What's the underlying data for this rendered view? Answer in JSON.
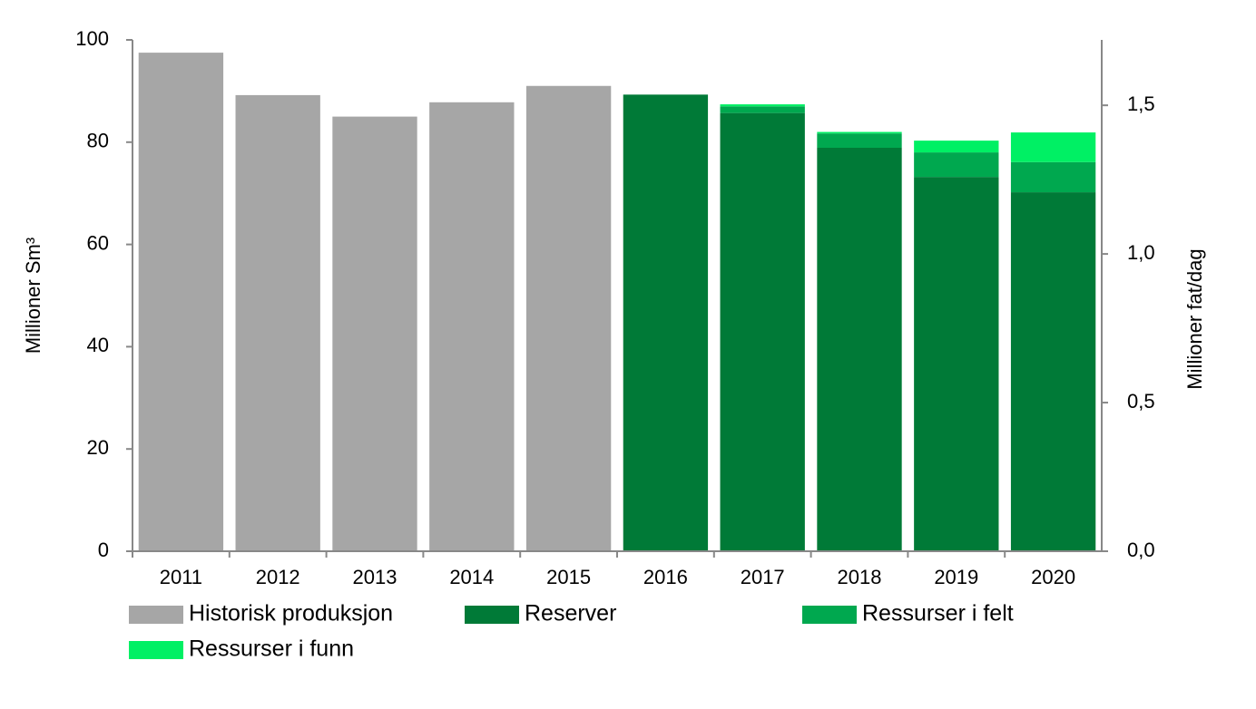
{
  "chart_data": {
    "type": "bar",
    "stacked": true,
    "categories": [
      "2011",
      "2012",
      "2013",
      "2014",
      "2015",
      "2016",
      "2017",
      "2018",
      "2019",
      "2020"
    ],
    "series": [
      {
        "name": "Historisk produksjon",
        "color": "#a6a6a6",
        "values": [
          97.5,
          89.2,
          85,
          87.8,
          91,
          null,
          null,
          null,
          null,
          null
        ]
      },
      {
        "name": "Reserver",
        "color": "#007a37",
        "values": [
          null,
          null,
          null,
          null,
          null,
          89.3,
          85.7,
          78.9,
          73.2,
          70.2
        ]
      },
      {
        "name": "Ressurser i felt",
        "color": "#00a84f",
        "values": [
          null,
          null,
          null,
          null,
          null,
          0,
          1.3,
          2.8,
          4.8,
          5.9
        ]
      },
      {
        "name": "Ressurser i funn",
        "color": "#00f064",
        "values": [
          null,
          null,
          null,
          null,
          null,
          0,
          0.4,
          0.3,
          2.3,
          5.8
        ]
      }
    ],
    "ylabel": "Millioner  Sm³",
    "y2label": "Millioner fat/dag",
    "ylim": [
      0,
      100
    ],
    "yticks": [
      0,
      20,
      40,
      60,
      80,
      100
    ],
    "y2lim": [
      0,
      1.72
    ],
    "y2ticks": [
      {
        "value": 0,
        "label": "0,0"
      },
      {
        "value": 0.5,
        "label": "0,5"
      },
      {
        "value": 1,
        "label": "1,0"
      },
      {
        "value": 1.5,
        "label": "1,5"
      }
    ],
    "grid": false
  }
}
